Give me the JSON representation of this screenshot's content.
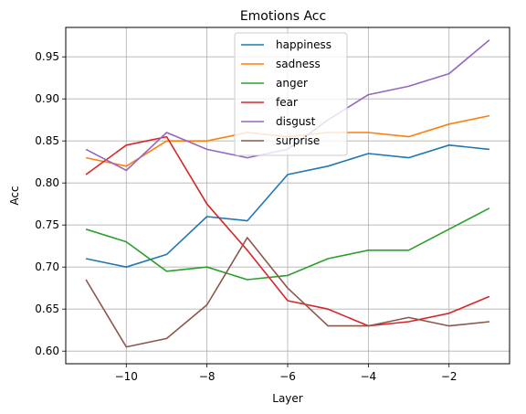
{
  "chart_data": {
    "type": "line",
    "title": "Emotions Acc",
    "xlabel": "Layer",
    "ylabel": "Acc",
    "xlim": [
      -11.5,
      -0.5
    ],
    "ylim": [
      0.585,
      0.985
    ],
    "xticks": [
      -10,
      -8,
      -6,
      -4,
      -2
    ],
    "xtick_labels": [
      "−10",
      "−8",
      "−6",
      "−4",
      "−2"
    ],
    "yticks": [
      0.6,
      0.65,
      0.7,
      0.75,
      0.8,
      0.85,
      0.9,
      0.95
    ],
    "ytick_labels": [
      "0.60",
      "0.65",
      "0.70",
      "0.75",
      "0.80",
      "0.85",
      "0.90",
      "0.95"
    ],
    "grid": true,
    "legend_position": "upper-center",
    "x": [
      -11,
      -10,
      -9,
      -8,
      -7,
      -6,
      -5,
      -4,
      -3,
      -2,
      -1
    ],
    "series": [
      {
        "name": "happiness",
        "color": "#1f77b4",
        "values": [
          0.71,
          0.7,
          0.715,
          0.76,
          0.755,
          0.81,
          0.82,
          0.835,
          0.83,
          0.845,
          0.84
        ]
      },
      {
        "name": "sadness",
        "color": "#ff7f0e",
        "values": [
          0.83,
          0.82,
          0.85,
          0.85,
          0.86,
          0.855,
          0.86,
          0.86,
          0.855,
          0.87,
          0.88
        ]
      },
      {
        "name": "anger",
        "color": "#2ca02c",
        "values": [
          0.745,
          0.73,
          0.695,
          0.7,
          0.685,
          0.69,
          0.71,
          0.72,
          0.72,
          0.745,
          0.77
        ]
      },
      {
        "name": "fear",
        "color": "#d62728",
        "values": [
          0.81,
          0.845,
          0.855,
          0.775,
          0.72,
          0.66,
          0.65,
          0.63,
          0.635,
          0.645,
          0.665
        ]
      },
      {
        "name": "disgust",
        "color": "#9467bd",
        "values": [
          0.84,
          0.815,
          0.86,
          0.84,
          0.83,
          0.84,
          0.875,
          0.905,
          0.915,
          0.93,
          0.97
        ]
      },
      {
        "name": "surprise",
        "color": "#8c564b",
        "values": [
          0.685,
          0.605,
          0.615,
          0.655,
          0.735,
          0.675,
          0.63,
          0.63,
          0.64,
          0.63,
          0.635
        ]
      }
    ]
  }
}
